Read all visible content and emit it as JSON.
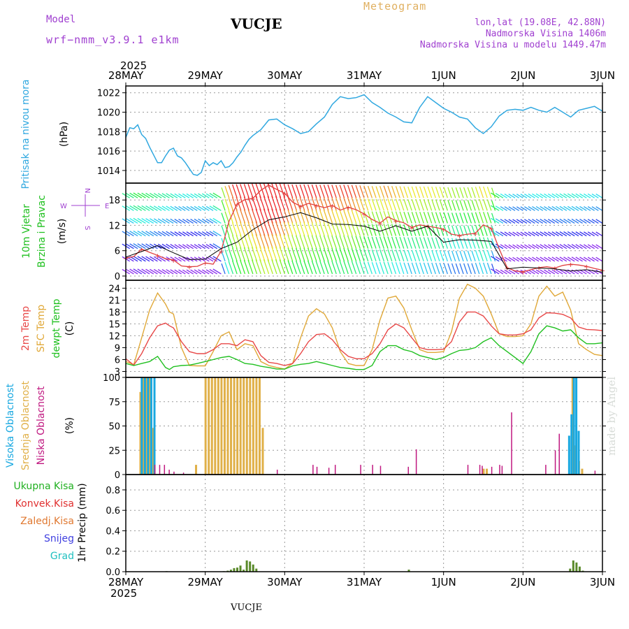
{
  "header": {
    "model_label": "Model",
    "model_name": "wrf−nmm_v3.9.1  e1km",
    "station": "VUCJE",
    "product": "Meteogram",
    "lonlat": "lon,lat (19.08E, 42.88N)",
    "elevation": "Nadmorska Visina 1406m",
    "model_elevation": "Nadmorska Visina u modelu 1449.47m"
  },
  "footer": {
    "station": "VUCJE",
    "credit": "made by Angel"
  },
  "time_axis": {
    "year": "2025",
    "ticks": [
      "28MAY",
      "29MAY",
      "30MAY",
      "31MAY",
      "1JUN",
      "2JUN",
      "3JUN"
    ]
  },
  "colors": {
    "pressure": "#30a8e0",
    "wind_speed": "#e04040",
    "wind_dir": "#000000",
    "temp2m": "#e84848",
    "temp_sfc": "#e0a838",
    "dewpoint": "#20c020",
    "cloud_high": "#18a8e0",
    "cloud_mid": "#e0b048",
    "cloud_low": "#c01880",
    "precip_total": "#20b020",
    "precip_conv": "#e03030",
    "precip_strat": "#e07830",
    "snow": "#4040e0",
    "hail": "#20c0c0"
  },
  "panels": {
    "pressure": {
      "label_left": "Pritisak na nivou mora",
      "unit": "(hPa)"
    },
    "wind": {
      "label_1": "10m Vjetar",
      "label_2": "Brzina i Pravac",
      "unit": "(m/s)",
      "compass": {
        "n": "N",
        "s": "S",
        "e": "E",
        "w": "W"
      }
    },
    "temp": {
      "label_2m": "2m Temp",
      "label_sfc": "SFC Temp",
      "label_dew": "dewpt Temp",
      "unit": "(C)"
    },
    "cloud": {
      "label_high": "Visoka Oblacnost",
      "label_mid": "Srednja Oblacnost",
      "label_low": "Niska Oblacnost",
      "unit": "(%)"
    },
    "precip": {
      "label_total": "Ukupna Kisa",
      "label_conv": "Konvek.Kisa",
      "label_strat": "Zaledj.Kisa",
      "label_snow": "Snijeg",
      "label_hail": "Grad",
      "unit": "1hr Precip (mm)"
    }
  },
  "chart_data": [
    {
      "type": "line",
      "panel": "pressure",
      "ylim": [
        1012.7,
        1022.7
      ],
      "yticks": [
        1014,
        1016,
        1018,
        1020,
        1022
      ],
      "grid": true,
      "series": [
        {
          "name": "Pritisak na nivou mora",
          "x": [
            0,
            0.05,
            0.1,
            0.15,
            0.2,
            0.25,
            0.3,
            0.35,
            0.4,
            0.45,
            0.5,
            0.55,
            0.6,
            0.65,
            0.7,
            0.75,
            0.8,
            0.85,
            0.9,
            0.95,
            1,
            1.05,
            1.1,
            1.15,
            1.2,
            1.25,
            1.3,
            1.35,
            1.4,
            1.45,
            1.5,
            1.55,
            1.6,
            1.7,
            1.8,
            1.9,
            2,
            2.1,
            2.2,
            2.3,
            2.4,
            2.5,
            2.6,
            2.7,
            2.8,
            2.9,
            3,
            3.1,
            3.2,
            3.3,
            3.4,
            3.5,
            3.6,
            3.7,
            3.8,
            3.9,
            4,
            4.1,
            4.2,
            4.3,
            4.4,
            4.5,
            4.6,
            4.7,
            4.8,
            4.9,
            5,
            5.1,
            5.2,
            5.3,
            5.4,
            5.5,
            5.6,
            5.7,
            5.8,
            5.9,
            6
          ],
          "values": [
            1017.4,
            1018.4,
            1018.3,
            1018.7,
            1017.7,
            1017.3,
            1016.4,
            1015.6,
            1014.8,
            1014.8,
            1015.5,
            1016.1,
            1016.3,
            1015.5,
            1015.3,
            1014.8,
            1014.2,
            1013.6,
            1013.5,
            1013.8,
            1015.0,
            1014.5,
            1014.8,
            1014.6,
            1015.0,
            1014.3,
            1014.4,
            1014.8,
            1015.4,
            1015.9,
            1016.6,
            1017.2,
            1017.6,
            1018.2,
            1019.2,
            1019.3,
            1018.7,
            1018.3,
            1017.8,
            1018.0,
            1018.8,
            1019.5,
            1020.8,
            1021.6,
            1021.4,
            1021.5,
            1021.8,
            1021.0,
            1020.5,
            1019.9,
            1019.5,
            1019.0,
            1018.9,
            1020.5,
            1021.6,
            1021.0,
            1020.4,
            1020.0,
            1019.5,
            1019.3,
            1018.4,
            1017.8,
            1018.5,
            1019.6,
            1020.2,
            1020.3,
            1020.2,
            1020.5,
            1020.2,
            1020.0,
            1020.5,
            1020.0,
            1019.5,
            1020.2,
            1020.4,
            1020.6,
            1020.1
          ]
        }
      ]
    },
    {
      "type": "line",
      "panel": "wind",
      "ylim": [
        -1,
        22
      ],
      "yticks": [
        0,
        6,
        12,
        18
      ],
      "grid": true,
      "series": [
        {
          "name": "Brzina",
          "x": [
            0,
            0.1,
            0.2,
            0.3,
            0.4,
            0.5,
            0.6,
            0.7,
            0.8,
            0.9,
            1,
            1.1,
            1.2,
            1.3,
            1.4,
            1.5,
            1.6,
            1.7,
            1.8,
            1.9,
            2,
            2.1,
            2.2,
            2.3,
            2.4,
            2.5,
            2.6,
            2.7,
            2.8,
            2.9,
            3,
            3.1,
            3.2,
            3.3,
            3.4,
            3.5,
            3.6,
            3.7,
            3.8,
            3.9,
            4,
            4.1,
            4.2,
            4.3,
            4.4,
            4.5,
            4.6,
            4.7,
            4.8,
            4.9,
            5,
            5.1,
            5.2,
            5.3,
            5.4,
            5.5,
            5.6,
            5.7,
            5.8,
            5.9,
            6
          ],
          "values": [
            4.3,
            4.6,
            6.4,
            5.6,
            4.9,
            4.1,
            3.8,
            2.4,
            2.2,
            2.3,
            3.1,
            2.8,
            5.9,
            13.0,
            17.0,
            18.1,
            18.4,
            20.3,
            21.5,
            20.5,
            19.6,
            17.5,
            16.5,
            17.2,
            16.7,
            16.2,
            16.7,
            15.6,
            16.3,
            15.7,
            14.7,
            13.4,
            12.5,
            14.0,
            13.1,
            12.6,
            11.5,
            12.1,
            11.8,
            11.5,
            11.1,
            9.9,
            9.6,
            9.9,
            10.1,
            12.1,
            11.3,
            6.5,
            2.0,
            1.2,
            1.0,
            1.5,
            2.0,
            2.2,
            1.9,
            2.5,
            2.8,
            2.6,
            2.3,
            1.8,
            1.4
          ]
        },
        {
          "name": "Pravac",
          "x": [
            0,
            0.2,
            0.4,
            0.6,
            0.8,
            1,
            1.2,
            1.4,
            1.6,
            1.8,
            2,
            2.2,
            2.4,
            2.6,
            2.8,
            3,
            3.2,
            3.4,
            3.6,
            3.8,
            4,
            4.2,
            4.4,
            4.6,
            4.8,
            5,
            5.2,
            5.4,
            5.6,
            5.8,
            6
          ],
          "values": [
            4.5,
            5.8,
            7.2,
            5.5,
            3.9,
            4.0,
            6.5,
            8.0,
            11.0,
            13.3,
            14.0,
            15.0,
            13.8,
            12.3,
            12.2,
            11.8,
            10.6,
            11.9,
            10.6,
            11.8,
            8.0,
            8.6,
            8.5,
            8.2,
            1.7,
            2.1,
            1.9,
            1.7,
            1.2,
            1.5,
            0.9
          ]
        }
      ]
    },
    {
      "type": "line",
      "panel": "temp",
      "ylim": [
        1.5,
        26
      ],
      "yticks": [
        3,
        6,
        9,
        12,
        15,
        18,
        21,
        24
      ],
      "grid": true,
      "series": [
        {
          "name": "2m Temp",
          "x": [
            0,
            0.1,
            0.2,
            0.3,
            0.4,
            0.5,
            0.55,
            0.6,
            0.7,
            0.8,
            0.9,
            1,
            1.1,
            1.2,
            1.3,
            1.4,
            1.5,
            1.6,
            1.7,
            1.8,
            1.9,
            2,
            2.1,
            2.2,
            2.3,
            2.4,
            2.5,
            2.6,
            2.7,
            2.8,
            2.9,
            3,
            3.1,
            3.2,
            3.3,
            3.4,
            3.5,
            3.6,
            3.7,
            3.8,
            3.9,
            4,
            4.1,
            4.2,
            4.3,
            4.4,
            4.5,
            4.6,
            4.7,
            4.8,
            4.9,
            5,
            5.1,
            5.2,
            5.3,
            5.4,
            5.5,
            5.6,
            5.7,
            5.8,
            5.9,
            6
          ],
          "values": [
            6.2,
            4.6,
            7.5,
            11.5,
            14.5,
            15.2,
            14.5,
            14.0,
            10.5,
            8.0,
            7.5,
            7.5,
            8.5,
            10.0,
            10.0,
            9.5,
            11.0,
            10.5,
            7.0,
            5.3,
            5.0,
            4.5,
            5.0,
            7.5,
            10.5,
            12.3,
            12.5,
            11.0,
            8.5,
            6.8,
            6.2,
            6.2,
            7.5,
            10.0,
            13.5,
            15.0,
            14.0,
            11.5,
            9.0,
            8.5,
            8.5,
            8.6,
            10.5,
            15.5,
            18.0,
            18.0,
            17.0,
            14.5,
            12.5,
            12.2,
            12.2,
            12.5,
            13.5,
            16.5,
            17.8,
            17.7,
            17.4,
            16.5,
            14.2,
            13.6,
            13.5,
            13.3
          ]
        },
        {
          "name": "SFC Temp",
          "x": [
            0,
            0.1,
            0.2,
            0.3,
            0.4,
            0.5,
            0.55,
            0.6,
            0.7,
            0.8,
            0.9,
            1,
            1.1,
            1.2,
            1.3,
            1.4,
            1.5,
            1.6,
            1.7,
            1.8,
            1.9,
            2,
            2.1,
            2.2,
            2.3,
            2.4,
            2.5,
            2.6,
            2.7,
            2.8,
            2.9,
            3,
            3.1,
            3.2,
            3.3,
            3.4,
            3.5,
            3.6,
            3.7,
            3.8,
            3.9,
            4,
            4.1,
            4.2,
            4.3,
            4.4,
            4.5,
            4.6,
            4.7,
            4.8,
            4.9,
            5,
            5.1,
            5.2,
            5.3,
            5.4,
            5.5,
            5.6,
            5.7,
            5.8,
            5.9,
            6
          ],
          "values": [
            5.5,
            4.7,
            11.5,
            18.5,
            22.8,
            20.0,
            18.0,
            17.5,
            9.0,
            4.5,
            4.4,
            4.4,
            8.0,
            12.0,
            13.0,
            8.5,
            10.0,
            9.5,
            5.5,
            4.5,
            4.0,
            3.6,
            5.0,
            11.5,
            17.0,
            18.8,
            17.5,
            14.0,
            8.0,
            5.0,
            4.5,
            4.5,
            8.5,
            16.0,
            21.5,
            22.0,
            19.0,
            13.5,
            8.5,
            7.8,
            7.8,
            8.0,
            13.0,
            21.5,
            25.0,
            24.0,
            22.0,
            17.5,
            12.5,
            11.8,
            11.8,
            12.0,
            15.0,
            22.0,
            24.5,
            22.0,
            23.0,
            18.5,
            10.0,
            8.5,
            7.3,
            7.0
          ]
        },
        {
          "name": "dewpt Temp",
          "x": [
            0,
            0.1,
            0.2,
            0.3,
            0.4,
            0.5,
            0.55,
            0.6,
            0.7,
            0.8,
            0.9,
            1,
            1.1,
            1.2,
            1.3,
            1.4,
            1.5,
            1.6,
            1.7,
            1.8,
            1.9,
            2,
            2.1,
            2.2,
            2.3,
            2.4,
            2.5,
            2.6,
            2.7,
            2.8,
            2.9,
            3,
            3.1,
            3.2,
            3.3,
            3.4,
            3.5,
            3.6,
            3.7,
            3.8,
            3.9,
            4,
            4.1,
            4.2,
            4.3,
            4.4,
            4.5,
            4.6,
            4.7,
            4.8,
            4.9,
            5,
            5.1,
            5.2,
            5.3,
            5.4,
            5.5,
            5.6,
            5.7,
            5.8,
            5.9,
            6
          ],
          "values": [
            5.0,
            4.5,
            5.0,
            5.5,
            6.8,
            4.0,
            3.5,
            4.2,
            4.5,
            4.6,
            5.0,
            5.5,
            6.0,
            6.5,
            6.8,
            6.0,
            5.0,
            4.8,
            4.3,
            4.0,
            3.6,
            3.6,
            4.4,
            4.8,
            5.0,
            5.5,
            5.0,
            4.5,
            4.0,
            3.8,
            3.5,
            3.5,
            4.5,
            8.0,
            9.5,
            9.5,
            8.5,
            8.0,
            7.0,
            6.5,
            6.0,
            6.5,
            7.5,
            8.3,
            8.5,
            9.0,
            10.5,
            11.5,
            9.5,
            8.0,
            6.5,
            5.0,
            8.0,
            12.5,
            14.5,
            14.0,
            13.2,
            13.5,
            11.5,
            10.0,
            10.0,
            10.2
          ]
        }
      ]
    },
    {
      "type": "bar",
      "panel": "cloud",
      "ylim": [
        0,
        100
      ],
      "yticks": [
        0,
        25,
        50,
        75,
        100
      ],
      "grid": true,
      "series": [
        {
          "name": "Visoka Oblacnost",
          "x": [
            0.17,
            0.21,
            0.25,
            0.29,
            0.33,
            5.55,
            5.58,
            5.61,
            5.64,
            5.67
          ],
          "values": [
            100,
            100,
            100,
            100,
            100,
            40,
            62,
            100,
            100,
            45
          ]
        },
        {
          "name": "Srednja Oblacnost",
          "x": [
            0.18,
            0.22,
            0.26,
            0.3,
            0.34,
            0.88,
            1.0,
            1.04,
            1.08,
            1.12,
            1.16,
            1.2,
            1.24,
            1.28,
            1.32,
            1.36,
            1.4,
            1.44,
            1.48,
            1.52,
            1.56,
            1.6,
            1.64,
            1.68,
            1.72,
            4.5,
            4.54,
            5.62,
            5.65,
            5.7,
            5.74
          ],
          "values": [
            85,
            100,
            100,
            100,
            48,
            10,
            100,
            100,
            100,
            100,
            100,
            100,
            100,
            100,
            100,
            100,
            100,
            100,
            100,
            100,
            100,
            100,
            100,
            100,
            48,
            6,
            6,
            100,
            30,
            14,
            6
          ]
        },
        {
          "name": "Niska Oblacnost",
          "x": [
            0.36,
            0.42,
            0.48,
            0.54,
            0.6,
            0.72,
            1.9,
            2.35,
            2.4,
            2.55,
            2.63,
            2.95,
            3.1,
            3.2,
            3.55,
            3.65,
            4.3,
            4.45,
            4.48,
            4.6,
            4.7,
            4.73,
            4.85,
            5.28,
            5.4,
            5.45,
            5.9
          ],
          "values": [
            10,
            10,
            10,
            5,
            3,
            2,
            5,
            10,
            8,
            7,
            10,
            10,
            10,
            9,
            8,
            26,
            10,
            10,
            9,
            8,
            10,
            9,
            64,
            10,
            25,
            42,
            4
          ]
        }
      ]
    },
    {
      "type": "bar",
      "panel": "precip",
      "ylim": [
        0,
        0.95
      ],
      "yticks": [
        0,
        0.2,
        0.4,
        0.6,
        0.8
      ],
      "grid": true,
      "series": [
        {
          "name": "Ukupna Kisa",
          "x": [
            0.5,
            1.22,
            1.27,
            1.31,
            1.35,
            1.39,
            1.43,
            1.47,
            1.51,
            1.55,
            1.59,
            1.63,
            3.55,
            5.58,
            5.62,
            5.66,
            5.7,
            5.74
          ],
          "values": [
            0.005,
            0.005,
            0.01,
            0.02,
            0.035,
            0.04,
            0.06,
            0.02,
            0.11,
            0.1,
            0.07,
            0.03,
            0.02,
            0.03,
            0.11,
            0.09,
            0.05,
            0.01
          ]
        },
        {
          "name": "Konvek.Kisa",
          "x": [],
          "values": []
        },
        {
          "name": "Zaledj.Kisa",
          "x": [],
          "values": []
        },
        {
          "name": "Snijeg",
          "x": [],
          "values": []
        },
        {
          "name": "Grad",
          "x": [],
          "values": []
        }
      ]
    }
  ]
}
